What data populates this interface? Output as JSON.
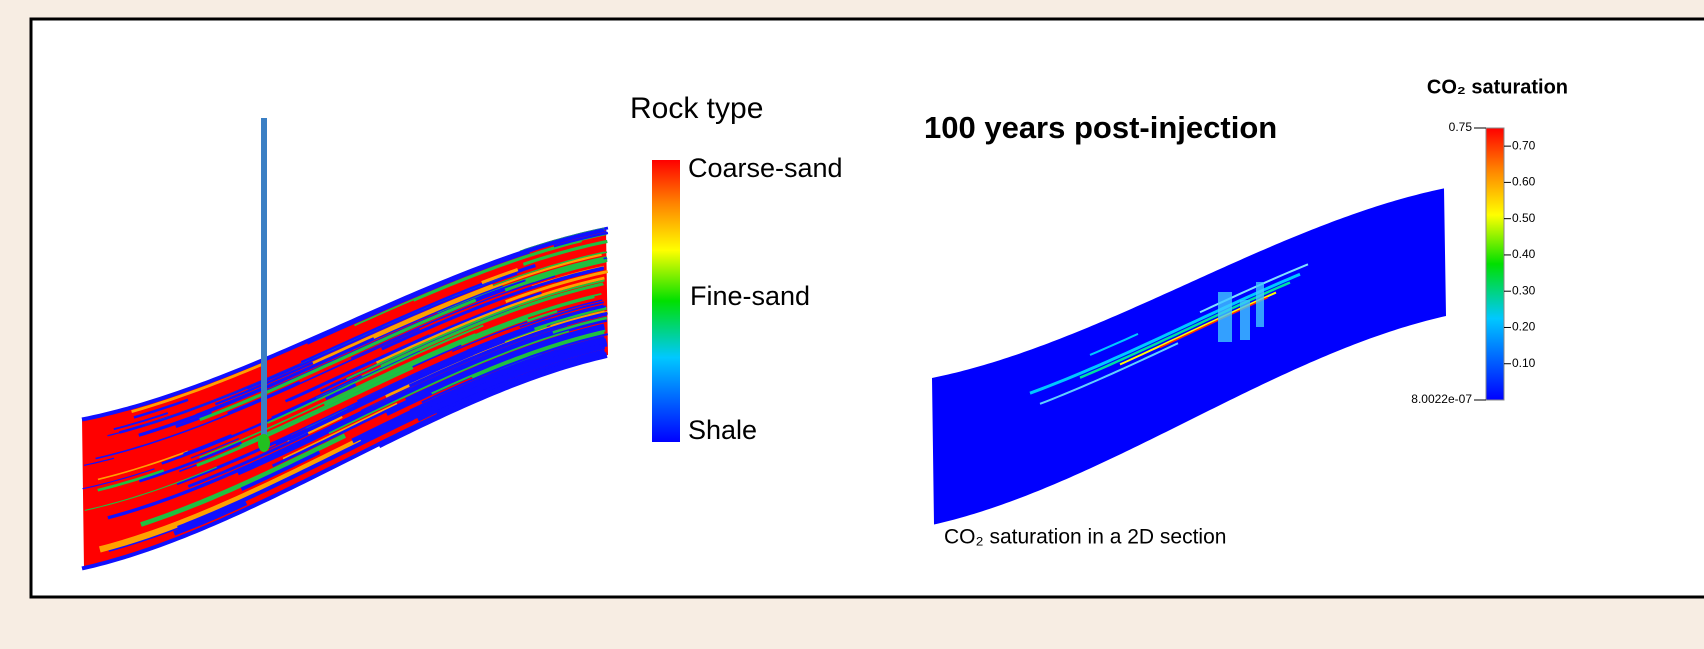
{
  "left_panel": {
    "legend_title": "Rock type",
    "legend_labels": [
      "Coarse-sand",
      "Fine-sand",
      "Shale"
    ]
  },
  "right_panel": {
    "title": "100 years post-injection",
    "caption": "CO₂ saturation in a 2D section",
    "colorbar": {
      "title": "CO₂ saturation",
      "range": [
        {
          "value": 8.0022e-07,
          "label": "8.0022e-07"
        },
        0.75
      ],
      "ticks": [
        {
          "value": 0.7,
          "label": "0.70"
        },
        {
          "value": 0.6,
          "label": "0.60"
        },
        {
          "value": 0.5,
          "label": "0.50"
        },
        {
          "value": 0.4,
          "label": "0.40"
        },
        {
          "value": 0.3,
          "label": "0.30"
        },
        {
          "value": 0.2,
          "label": "0.20"
        },
        {
          "value": 0.1,
          "label": "0.10"
        }
      ]
    }
  }
}
